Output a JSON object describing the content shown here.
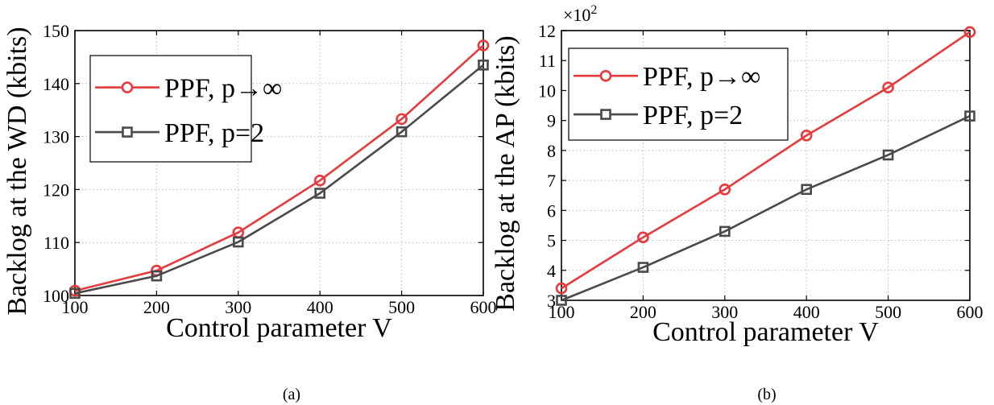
{
  "chart_data": [
    {
      "type": "line",
      "caption": "(a)",
      "xlabel": "Control parameter V",
      "ylabel": "Backlog at the WD (kbits)",
      "x": [
        100,
        200,
        300,
        400,
        500,
        600
      ],
      "xlim": [
        100,
        600
      ],
      "ylim": [
        100,
        150
      ],
      "xticks": [
        "100",
        "200",
        "300",
        "400",
        "500",
        "600"
      ],
      "yticks": [
        "100",
        "110",
        "120",
        "130",
        "140",
        "150"
      ],
      "grid": true,
      "legend_position": "upper-left",
      "series": [
        {
          "name": "PPF, p→∞",
          "marker": "circle",
          "color": "#e8393c",
          "values": [
            100.9,
            104.7,
            111.9,
            121.7,
            133.3,
            147.2
          ]
        },
        {
          "name": "PPF, p=2",
          "marker": "square",
          "color": "#4a4a4a",
          "values": [
            100.4,
            103.7,
            110.1,
            119.3,
            130.9,
            143.5
          ]
        }
      ]
    },
    {
      "type": "line",
      "caption": "(b)",
      "xlabel": "Control parameter V",
      "ylabel": "Backlog at the AP (kbits)",
      "y_multiplier": "×10",
      "y_multiplier_exp": "2",
      "x": [
        100,
        200,
        300,
        400,
        500,
        600
      ],
      "xlim": [
        100,
        600
      ],
      "ylim": [
        3,
        12
      ],
      "xticks": [
        "100",
        "200",
        "300",
        "400",
        "500",
        "600"
      ],
      "yticks": [
        "3",
        "4",
        "5",
        "6",
        "7",
        "8",
        "9",
        "10",
        "11",
        "12"
      ],
      "grid": true,
      "legend_position": "upper-left",
      "series": [
        {
          "name": "PPF, p→∞",
          "marker": "circle",
          "color": "#e8393c",
          "values": [
            3.4,
            5.1,
            6.7,
            8.5,
            10.1,
            11.95
          ]
        },
        {
          "name": "PPF, p=2",
          "marker": "square",
          "color": "#4a4a4a",
          "values": [
            3.0,
            4.1,
            5.3,
            6.7,
            7.85,
            9.15
          ]
        }
      ]
    }
  ]
}
